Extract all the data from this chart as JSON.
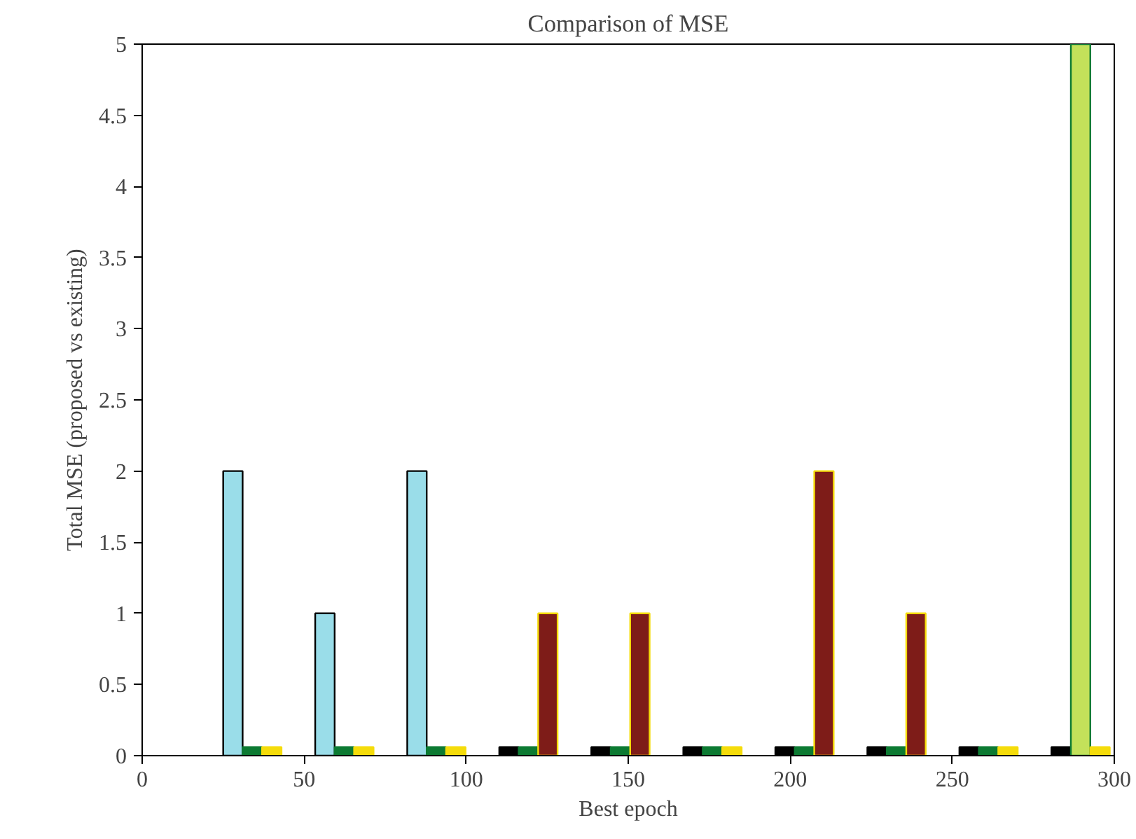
{
  "chart_data": {
    "type": "bar",
    "title": "Comparison of MSE",
    "xlabel": "Best epoch",
    "ylabel": "Total MSE (proposed vs existing)",
    "series": [
      {
        "color": "#000000",
        "x": [
          28,
          56.4,
          84.8,
          113.2,
          141.6,
          170,
          198.4,
          226.8,
          255.2,
          283.6
        ],
        "values": [
          2,
          1,
          2,
          0.06,
          0.06,
          0.06,
          0.06,
          0.06,
          0.06,
          0.06
        ],
        "colors": [
          "#9adde9",
          "#9adde9",
          "#9adde9",
          "#000000",
          "#000000",
          "#000000",
          "#000000",
          "#000000",
          "#000000",
          "#000000"
        ]
      },
      {
        "color": "#0c7a32",
        "x": [
          34,
          62.4,
          90.8,
          119.2,
          147.6,
          176,
          204.4,
          232.8,
          261.2,
          289.6
        ],
        "values": [
          0.06,
          0.06,
          0.06,
          0.06,
          0.06,
          0.06,
          0.06,
          0.06,
          0.06,
          5
        ],
        "colors": [
          "#0c7a32",
          "#0c7a32",
          "#0c7a32",
          "#0c7a32",
          "#0c7a32",
          "#0c7a32",
          "#0c7a32",
          "#0c7a32",
          "#0c7a32",
          "#c3e15a"
        ]
      },
      {
        "color": "#f5dc0a",
        "x": [
          40,
          68.4,
          96.8,
          125.2,
          153.6,
          182,
          210.4,
          238.8,
          267.2,
          295.6
        ],
        "values": [
          0.06,
          0.06,
          0.06,
          1,
          1,
          0.06,
          2,
          1,
          0.06,
          0.06
        ],
        "colors": [
          "#f5dc0a",
          "#f5dc0a",
          "#f5dc0a",
          "#7e1c18",
          "#7e1c18",
          "#f5dc0a",
          "#7e1c18",
          "#7e1c18",
          "#f5dc0a",
          "#f5dc0a"
        ]
      }
    ],
    "xlim": [
      0,
      300
    ],
    "xticks": [
      0,
      50,
      100,
      150,
      200,
      250,
      300
    ],
    "ylim": [
      0,
      5
    ],
    "yticks": [
      0,
      0.5,
      1,
      1.5,
      2,
      2.5,
      3,
      3.5,
      4,
      4.5,
      5
    ],
    "grid": false
  }
}
